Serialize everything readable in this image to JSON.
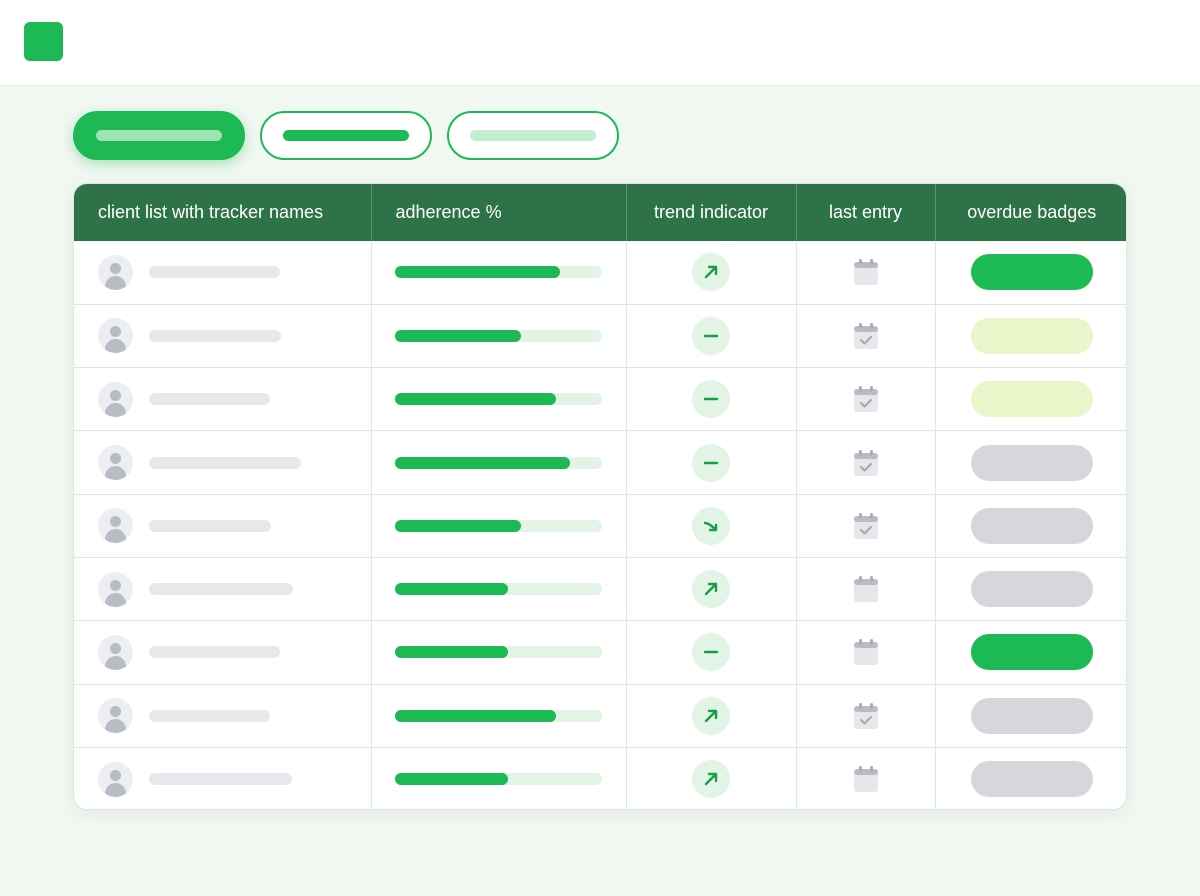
{
  "table": {
    "headers": {
      "client": "client list with tracker names",
      "adherence": "adherence %",
      "trend": "trend indicator",
      "last_entry": "last entry",
      "overdue": "overdue badges"
    },
    "rows": [
      {
        "adherence": 0.8,
        "trend": "trend-up-icon",
        "calendar": "calendar-icon",
        "badge": "green"
      },
      {
        "adherence": 0.61,
        "trend": "trend-flat-icon",
        "calendar": "calendar-check-icon",
        "badge": "yellow"
      },
      {
        "adherence": 0.78,
        "trend": "trend-flat-icon",
        "calendar": "calendar-check-icon",
        "badge": "yellow"
      },
      {
        "adherence": 0.85,
        "trend": "trend-flat-icon",
        "calendar": "calendar-check-icon",
        "badge": "gray"
      },
      {
        "adherence": 0.61,
        "trend": "trend-down-icon",
        "calendar": "calendar-check-icon",
        "badge": "gray"
      },
      {
        "adherence": 0.55,
        "trend": "trend-up-icon",
        "calendar": "calendar-icon",
        "badge": "gray"
      },
      {
        "adherence": 0.55,
        "trend": "trend-flat-icon",
        "calendar": "calendar-icon",
        "badge": "green"
      },
      {
        "adherence": 0.78,
        "trend": "trend-up-icon",
        "calendar": "calendar-check-icon",
        "badge": "gray"
      },
      {
        "adherence": 0.55,
        "trend": "trend-up-icon",
        "calendar": "calendar-icon",
        "badge": "gray"
      }
    ]
  },
  "colors": {
    "accent": "#1db954",
    "header_bg": "#2e7347",
    "badge_green": "#1db954",
    "badge_yellow": "#eaf5c9",
    "badge_gray": "#d5d7dc"
  }
}
